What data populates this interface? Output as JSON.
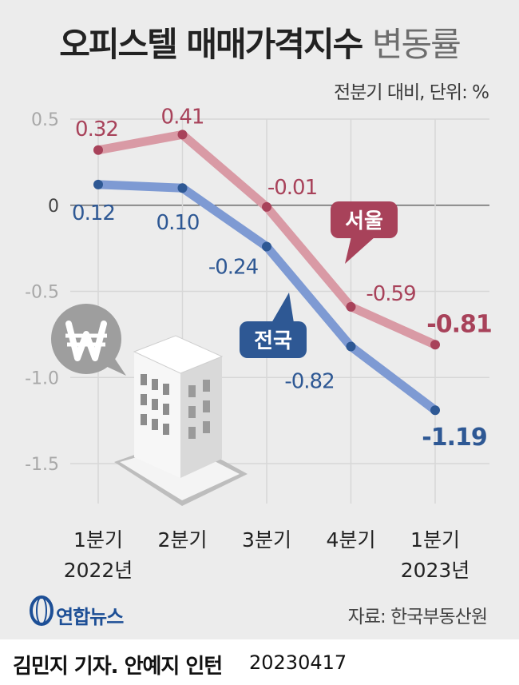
{
  "title": {
    "main": "오피스텔 매매가격지수",
    "sub": "변동률"
  },
  "subtitle": "전분기 대비, 단위: %",
  "source": "자료: 한국부동산원",
  "agency": "연합뉴스",
  "credit": {
    "reporters": "김민지 기자. 안예지 인턴",
    "date": "20230417"
  },
  "colors": {
    "seoul": "#a8425a",
    "seoul_line": "#d99aa5",
    "national": "#2e5894",
    "national_line": "#7e9ad3"
  },
  "icons": {
    "currency": "won-speech-bubble-icon",
    "building": "office-building-icon",
    "logo": "yonhap-globe-logo"
  },
  "chart_data": {
    "type": "line",
    "categories": [
      [
        "1분기",
        "2022년"
      ],
      [
        "2분기",
        ""
      ],
      [
        "3분기",
        ""
      ],
      [
        "4분기",
        ""
      ],
      [
        "1분기",
        "2023년"
      ]
    ],
    "ylim": [
      -1.5,
      0.5
    ],
    "yticks": [
      "0.5",
      "0",
      "-0.5",
      "-1.0",
      "-1.5"
    ],
    "series": [
      {
        "name": "서울",
        "values": [
          0.32,
          0.41,
          -0.01,
          -0.59,
          -0.81
        ],
        "labels": [
          "0.32",
          "0.41",
          "-0.01",
          "-0.59",
          "-0.81"
        ]
      },
      {
        "name": "전국",
        "values": [
          0.12,
          0.1,
          -0.24,
          -0.82,
          -1.19
        ],
        "labels": [
          "0.12",
          "0.10",
          "-0.24",
          "-0.82",
          "-1.19"
        ]
      }
    ],
    "grid": true,
    "xlabel": "",
    "ylabel": ""
  }
}
